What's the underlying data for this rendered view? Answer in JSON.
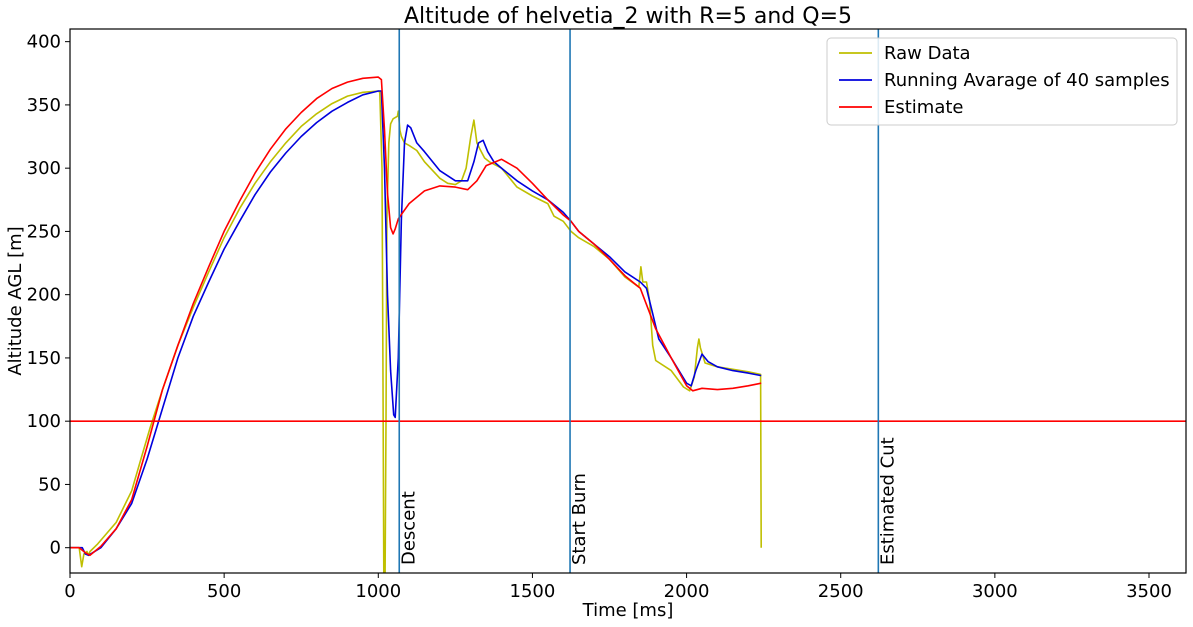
{
  "chart_data": {
    "type": "line",
    "title": "Altitude of helvetia_2 with R=5 and Q=5",
    "xlabel": "Time [ms]",
    "ylabel": "Altitude AGL [m]",
    "xlim": [
      0,
      3620
    ],
    "ylim": [
      -20,
      410
    ],
    "xticks": [
      0,
      500,
      1000,
      1500,
      2000,
      2500,
      3000,
      3500
    ],
    "yticks": [
      0,
      50,
      100,
      150,
      200,
      250,
      300,
      350,
      400
    ],
    "grid": false,
    "legend_position": "top-right",
    "hlines": [
      {
        "y": 100,
        "color": "#ff0000"
      }
    ],
    "vlines": [
      {
        "x": 1068,
        "label": "Descent",
        "color": "#1f77b4"
      },
      {
        "x": 1622,
        "label": "Start Burn",
        "color": "#1f77b4"
      },
      {
        "x": 2622,
        "label": "Estimated Cut",
        "color": "#1f77b4"
      }
    ],
    "series": [
      {
        "name": "Raw Data",
        "color": "#bfbf00",
        "points": [
          [
            0,
            0
          ],
          [
            30,
            0
          ],
          [
            38,
            -15
          ],
          [
            45,
            -5
          ],
          [
            55,
            -3
          ],
          [
            60,
            -6
          ],
          [
            65,
            -3
          ],
          [
            90,
            3
          ],
          [
            150,
            20
          ],
          [
            200,
            45
          ],
          [
            230,
            70
          ],
          [
            260,
            95
          ],
          [
            300,
            125
          ],
          [
            350,
            160
          ],
          [
            400,
            190
          ],
          [
            450,
            218
          ],
          [
            500,
            245
          ],
          [
            550,
            268
          ],
          [
            600,
            288
          ],
          [
            650,
            305
          ],
          [
            700,
            320
          ],
          [
            750,
            333
          ],
          [
            800,
            343
          ],
          [
            850,
            351
          ],
          [
            900,
            357
          ],
          [
            950,
            360
          ],
          [
            1000,
            361
          ],
          [
            1005,
            360
          ],
          [
            1012,
            300
          ],
          [
            1015,
            150
          ],
          [
            1018,
            -20
          ],
          [
            1022,
            -20
          ],
          [
            1025,
            100
          ],
          [
            1028,
            260
          ],
          [
            1034,
            320
          ],
          [
            1040,
            335
          ],
          [
            1048,
            339
          ],
          [
            1055,
            340
          ],
          [
            1062,
            341
          ],
          [
            1065,
            345
          ],
          [
            1070,
            330
          ],
          [
            1075,
            325
          ],
          [
            1085,
            320
          ],
          [
            1100,
            318
          ],
          [
            1125,
            314
          ],
          [
            1150,
            305
          ],
          [
            1200,
            292
          ],
          [
            1225,
            288
          ],
          [
            1250,
            287
          ],
          [
            1270,
            290
          ],
          [
            1285,
            300
          ],
          [
            1300,
            325
          ],
          [
            1310,
            338
          ],
          [
            1320,
            320
          ],
          [
            1330,
            315
          ],
          [
            1345,
            308
          ],
          [
            1360,
            305
          ],
          [
            1400,
            300
          ],
          [
            1450,
            285
          ],
          [
            1500,
            278
          ],
          [
            1550,
            272
          ],
          [
            1570,
            262
          ],
          [
            1600,
            258
          ],
          [
            1625,
            250
          ],
          [
            1650,
            245
          ],
          [
            1700,
            238
          ],
          [
            1750,
            228
          ],
          [
            1800,
            214
          ],
          [
            1845,
            206
          ],
          [
            1852,
            222
          ],
          [
            1858,
            210
          ],
          [
            1870,
            210
          ],
          [
            1880,
            195
          ],
          [
            1890,
            160
          ],
          [
            1900,
            148
          ],
          [
            1950,
            140
          ],
          [
            1990,
            127
          ],
          [
            2010,
            124
          ],
          [
            2025,
            135
          ],
          [
            2035,
            158
          ],
          [
            2040,
            165
          ],
          [
            2045,
            158
          ],
          [
            2060,
            146
          ],
          [
            2100,
            143
          ],
          [
            2150,
            141
          ],
          [
            2200,
            139
          ],
          [
            2240,
            137
          ],
          [
            2242,
            0
          ]
        ]
      },
      {
        "name": "Running Avarage of 40 samples",
        "color": "#0000dd",
        "points": [
          [
            0,
            0
          ],
          [
            40,
            0
          ],
          [
            50,
            -5
          ],
          [
            60,
            -6
          ],
          [
            100,
            0
          ],
          [
            150,
            15
          ],
          [
            200,
            35
          ],
          [
            250,
            70
          ],
          [
            300,
            110
          ],
          [
            350,
            150
          ],
          [
            400,
            183
          ],
          [
            450,
            210
          ],
          [
            500,
            236
          ],
          [
            550,
            258
          ],
          [
            600,
            279
          ],
          [
            650,
            297
          ],
          [
            700,
            312
          ],
          [
            750,
            325
          ],
          [
            800,
            336
          ],
          [
            850,
            345
          ],
          [
            900,
            352
          ],
          [
            950,
            358
          ],
          [
            1000,
            361
          ],
          [
            1010,
            361
          ],
          [
            1020,
            300
          ],
          [
            1030,
            200
          ],
          [
            1040,
            140
          ],
          [
            1050,
            105
          ],
          [
            1055,
            103
          ],
          [
            1065,
            150
          ],
          [
            1075,
            260
          ],
          [
            1085,
            320
          ],
          [
            1095,
            334
          ],
          [
            1105,
            332
          ],
          [
            1125,
            320
          ],
          [
            1150,
            313
          ],
          [
            1200,
            298
          ],
          [
            1250,
            290
          ],
          [
            1290,
            290
          ],
          [
            1310,
            305
          ],
          [
            1325,
            320
          ],
          [
            1340,
            322
          ],
          [
            1355,
            313
          ],
          [
            1375,
            305
          ],
          [
            1400,
            300
          ],
          [
            1450,
            290
          ],
          [
            1500,
            282
          ],
          [
            1550,
            275
          ],
          [
            1600,
            265
          ],
          [
            1625,
            258
          ],
          [
            1650,
            250
          ],
          [
            1700,
            240
          ],
          [
            1750,
            230
          ],
          [
            1800,
            218
          ],
          [
            1850,
            210
          ],
          [
            1870,
            205
          ],
          [
            1890,
            185
          ],
          [
            1910,
            165
          ],
          [
            1950,
            150
          ],
          [
            2000,
            130
          ],
          [
            2015,
            128
          ],
          [
            2030,
            140
          ],
          [
            2050,
            153
          ],
          [
            2070,
            147
          ],
          [
            2100,
            143
          ],
          [
            2150,
            140
          ],
          [
            2200,
            138
          ],
          [
            2242,
            136
          ]
        ]
      },
      {
        "name": "Estimate",
        "color": "#ff0000",
        "points": [
          [
            0,
            0
          ],
          [
            30,
            0
          ],
          [
            50,
            -4
          ],
          [
            65,
            -6
          ],
          [
            100,
            1
          ],
          [
            150,
            15
          ],
          [
            200,
            38
          ],
          [
            250,
            80
          ],
          [
            300,
            125
          ],
          [
            350,
            160
          ],
          [
            400,
            193
          ],
          [
            450,
            222
          ],
          [
            500,
            250
          ],
          [
            550,
            274
          ],
          [
            600,
            296
          ],
          [
            650,
            315
          ],
          [
            700,
            331
          ],
          [
            750,
            344
          ],
          [
            800,
            355
          ],
          [
            850,
            363
          ],
          [
            900,
            368
          ],
          [
            950,
            371
          ],
          [
            1000,
            372
          ],
          [
            1010,
            370
          ],
          [
            1020,
            330
          ],
          [
            1030,
            280
          ],
          [
            1040,
            253
          ],
          [
            1048,
            248
          ],
          [
            1055,
            252
          ],
          [
            1065,
            260
          ],
          [
            1100,
            272
          ],
          [
            1150,
            282
          ],
          [
            1200,
            286
          ],
          [
            1250,
            285
          ],
          [
            1290,
            283
          ],
          [
            1320,
            290
          ],
          [
            1350,
            302
          ],
          [
            1400,
            307
          ],
          [
            1450,
            300
          ],
          [
            1500,
            288
          ],
          [
            1550,
            275
          ],
          [
            1600,
            263
          ],
          [
            1625,
            258
          ],
          [
            1650,
            250
          ],
          [
            1700,
            240
          ],
          [
            1750,
            228
          ],
          [
            1800,
            215
          ],
          [
            1850,
            205
          ],
          [
            1900,
            173
          ],
          [
            1950,
            150
          ],
          [
            2000,
            128
          ],
          [
            2020,
            124
          ],
          [
            2050,
            126
          ],
          [
            2100,
            125
          ],
          [
            2150,
            126
          ],
          [
            2200,
            128
          ],
          [
            2242,
            130
          ]
        ]
      }
    ]
  }
}
